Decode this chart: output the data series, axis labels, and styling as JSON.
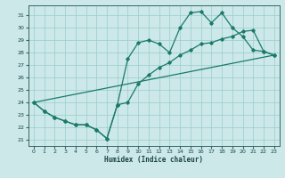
{
  "xlabel": "Humidex (Indice chaleur)",
  "bg_color": "#cce8e8",
  "grid_color": "#99cccc",
  "line_color": "#1a7a6a",
  "xlim": [
    -0.5,
    23.5
  ],
  "ylim": [
    20.5,
    31.8
  ],
  "yticks": [
    21,
    22,
    23,
    24,
    25,
    26,
    27,
    28,
    29,
    30,
    31
  ],
  "xticks": [
    0,
    1,
    2,
    3,
    4,
    5,
    6,
    7,
    8,
    9,
    10,
    11,
    12,
    13,
    14,
    15,
    16,
    17,
    18,
    19,
    20,
    21,
    22,
    23
  ],
  "line1_x": [
    0,
    1,
    2,
    3,
    4,
    5,
    6,
    7,
    8,
    9,
    10,
    11,
    12,
    13,
    14,
    15,
    16,
    17,
    18,
    19,
    20,
    21,
    22,
    23
  ],
  "line1_y": [
    24.0,
    23.3,
    22.8,
    22.5,
    22.2,
    22.2,
    21.8,
    21.1,
    23.8,
    27.5,
    28.8,
    29.0,
    28.7,
    28.0,
    30.0,
    31.2,
    31.3,
    30.4,
    31.2,
    30.0,
    29.3,
    28.2,
    28.1,
    27.8
  ],
  "line2_x": [
    0,
    1,
    2,
    3,
    4,
    5,
    6,
    7,
    8,
    9,
    10,
    11,
    12,
    13,
    14,
    15,
    16,
    17,
    18,
    19,
    20,
    21,
    22,
    23
  ],
  "line2_y": [
    24.0,
    23.3,
    22.8,
    22.5,
    22.2,
    22.2,
    21.8,
    21.1,
    23.8,
    24.0,
    25.5,
    26.2,
    26.8,
    27.2,
    27.8,
    28.2,
    28.7,
    28.8,
    29.1,
    29.3,
    29.7,
    29.8,
    28.1,
    27.8
  ],
  "trend_x": [
    0,
    23
  ],
  "trend_y": [
    24.0,
    27.8
  ]
}
